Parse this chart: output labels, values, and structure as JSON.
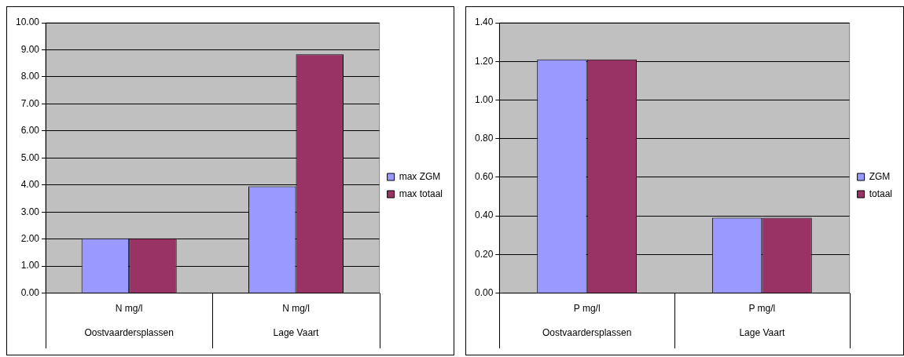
{
  "chart_data": [
    {
      "type": "bar",
      "categories": [
        "N mg/l\nOostvaardersplassen",
        "N mg/l\nLage Vaart"
      ],
      "series": [
        {
          "name": "max ZGM",
          "color": "#9999ff",
          "values": [
            2.03,
            3.95
          ]
        },
        {
          "name": "max totaal",
          "color": "#993366",
          "values": [
            2.03,
            8.83
          ]
        }
      ],
      "ylim": [
        0,
        10
      ],
      "yticks": [
        {
          "value": 0,
          "label": "0.00"
        },
        {
          "value": 1,
          "label": "1.00"
        },
        {
          "value": 2,
          "label": "2.00"
        },
        {
          "value": 3,
          "label": "3.00"
        },
        {
          "value": 4,
          "label": "4.00"
        },
        {
          "value": 5,
          "label": "5.00"
        },
        {
          "value": 6,
          "label": "6.00"
        },
        {
          "value": 7,
          "label": "7.00"
        },
        {
          "value": 8,
          "label": "8.00"
        },
        {
          "value": 9,
          "label": "9.00"
        },
        {
          "value": 10,
          "label": "10.00"
        }
      ],
      "grid": "y",
      "legend": "right"
    },
    {
      "type": "bar",
      "categories": [
        "P mg/l\nOostvaardersplassen",
        "P mg/l\nLage Vaart"
      ],
      "series": [
        {
          "name": "ZGM",
          "color": "#9999ff",
          "values": [
            1.21,
            0.39
          ]
        },
        {
          "name": "totaal",
          "color": "#993366",
          "values": [
            1.21,
            0.39
          ]
        }
      ],
      "ylim": [
        0,
        1.4
      ],
      "yticks": [
        {
          "value": 0,
          "label": "0.00"
        },
        {
          "value": 0.2,
          "label": "0.20"
        },
        {
          "value": 0.4,
          "label": "0.40"
        },
        {
          "value": 0.6,
          "label": "0.60"
        },
        {
          "value": 0.8,
          "label": "0.80"
        },
        {
          "value": 1.0,
          "label": "1.00"
        },
        {
          "value": 1.2,
          "label": "1.20"
        },
        {
          "value": 1.4,
          "label": "1.40"
        }
      ],
      "grid": "y",
      "legend": "right"
    }
  ]
}
